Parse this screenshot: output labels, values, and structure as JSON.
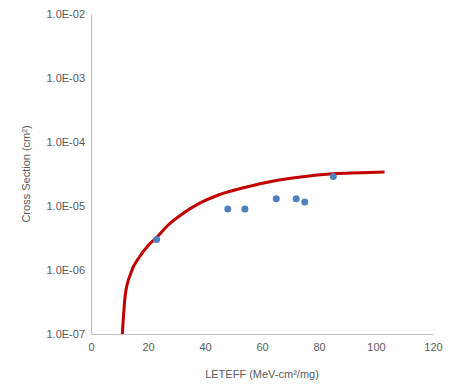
{
  "chart_data": {
    "type": "scatter",
    "x_label": "LETEFF (MeV-cm²/mg)",
    "y_label": "Cross Section (cm²)",
    "xlim": [
      0,
      120
    ],
    "xticks": [
      0,
      20,
      40,
      60,
      80,
      100,
      120
    ],
    "ylim": [
      1e-07,
      0.01
    ],
    "yticks": [
      {
        "value": 1e-07,
        "label": "1.0E-07"
      },
      {
        "value": 1e-06,
        "label": "1.0E-06"
      },
      {
        "value": 1e-05,
        "label": "1.0E-05"
      },
      {
        "value": 0.0001,
        "label": "1.0E-04"
      },
      {
        "value": 0.001,
        "label": "1.0E-03"
      },
      {
        "value": 0.01,
        "label": "1.0E-02"
      }
    ],
    "log": "y",
    "grid": false,
    "series": [
      {
        "type": "line",
        "color": "#c00000",
        "line_style": "solid",
        "x": [
          11,
          12,
          14,
          17,
          20,
          23,
          27,
          32,
          38,
          45,
          55,
          65,
          75,
          85,
          95,
          103
        ],
        "values": [
          1e-07,
          4e-07,
          9e-07,
          1.6e-06,
          2.4e-06,
          3.2e-06,
          5e-06,
          7.5e-06,
          1.1e-05,
          1.5e-05,
          2e-05,
          2.5e-05,
          2.9e-05,
          3.2e-05,
          3.3e-05,
          3.4e-05
        ]
      },
      {
        "type": "scatter",
        "color": "#4f81bd",
        "marker": "circle",
        "x": [
          23,
          48,
          54,
          65,
          72,
          75,
          85
        ],
        "values": [
          3e-06,
          9e-06,
          9e-06,
          1.3e-05,
          1.3e-05,
          1.15e-05,
          2.9e-05
        ]
      }
    ]
  }
}
